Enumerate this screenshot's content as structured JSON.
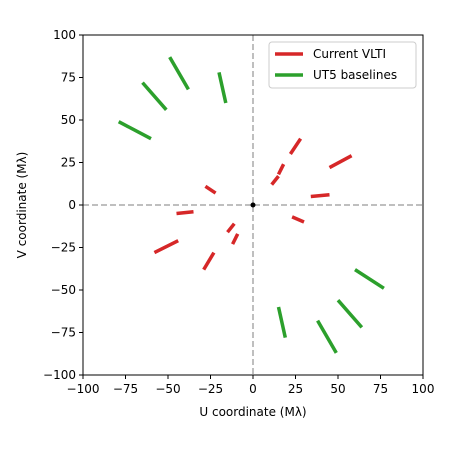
{
  "chart_data": {
    "type": "line",
    "title": "",
    "xlabel": "U coordinate (Mλ)",
    "ylabel": "V coordinate (Mλ)",
    "xlim": [
      -100,
      100
    ],
    "ylim": [
      -100,
      100
    ],
    "xticks": [
      "−100",
      "−75",
      "−50",
      "−25",
      "0",
      "25",
      "50",
      "75",
      "100"
    ],
    "yticks": [
      "−100",
      "−75",
      "−50",
      "−25",
      "0",
      "25",
      "50",
      "75",
      "100"
    ],
    "grid": false,
    "reference_lines": {
      "x": 0,
      "y": 0,
      "style": "dashed",
      "color": "#aaaaaa"
    },
    "origin_point": [
      0,
      0
    ],
    "legend": {
      "placement": "upper-right"
    },
    "series": [
      {
        "name": "Current VLTI",
        "color": "#d62728",
        "segments": [
          [
            [
              -28,
              11
            ],
            [
              -22,
              7
            ]
          ],
          [
            [
              -45,
              -5
            ],
            [
              -35,
              -4
            ]
          ],
          [
            [
              -58,
              -28
            ],
            [
              -44,
              -21
            ]
          ],
          [
            [
              -15,
              -16
            ],
            [
              -11,
              -11
            ]
          ],
          [
            [
              -29,
              -38
            ],
            [
              -23,
              -28
            ]
          ],
          [
            [
              -12,
              -23
            ],
            [
              -9,
              -17
            ]
          ],
          [
            [
              15,
              18
            ],
            [
              18,
              24
            ]
          ],
          [
            [
              22,
              30
            ],
            [
              28,
              39
            ]
          ],
          [
            [
              11,
              12
            ],
            [
              15,
              17
            ]
          ],
          [
            [
              34,
              5
            ],
            [
              45,
              6
            ]
          ],
          [
            [
              45,
              22
            ],
            [
              58,
              29
            ]
          ],
          [
            [
              23,
              -7
            ],
            [
              30,
              -10
            ]
          ]
        ]
      },
      {
        "name": "UT5 baselines",
        "color": "#2ca02c",
        "segments": [
          [
            [
              -49,
              87
            ],
            [
              -38,
              68
            ]
          ],
          [
            [
              -65,
              72
            ],
            [
              -51,
              56
            ]
          ],
          [
            [
              -79,
              49
            ],
            [
              -60,
              39
            ]
          ],
          [
            [
              -20,
              78
            ],
            [
              -16,
              60
            ]
          ],
          [
            [
              60,
              -38
            ],
            [
              77,
              -49
            ]
          ],
          [
            [
              50,
              -56
            ],
            [
              64,
              -72
            ]
          ],
          [
            [
              38,
              -68
            ],
            [
              49,
              -87
            ]
          ],
          [
            [
              15,
              -60
            ],
            [
              19,
              -78
            ]
          ]
        ]
      }
    ]
  }
}
